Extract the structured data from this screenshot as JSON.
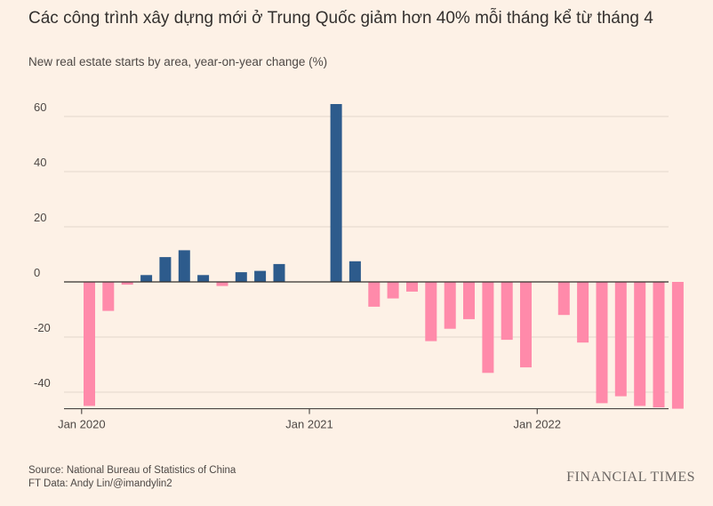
{
  "title": "Các công trình xây dựng mới ở Trung Quốc giảm hơn 40% mỗi tháng kể từ tháng 4",
  "subtitle": "New real estate starts by area, year-on-year change (%)",
  "source": "Source: National Bureau of Statistics of China",
  "credit": "FT Data: Andy Lin/@imandylin2",
  "brand": "FINANCIAL TIMES",
  "colors": {
    "positive": "#2d5b8c",
    "negative": "#ff8aaa",
    "grid": "#e2d7cc",
    "axis": "#33302e"
  },
  "chart_data": {
    "type": "bar",
    "title": "Các công trình xây dựng mới ở Trung Quốc giảm hơn 40% mỗi tháng kể từ tháng 4",
    "subtitle": "New real estate starts by area, year-on-year change (%)",
    "categories": [
      "2020-01",
      "2020-02",
      "2020-03",
      "2020-04",
      "2020-05",
      "2020-06",
      "2020-07",
      "2020-08",
      "2020-09",
      "2020-10",
      "2020-11",
      "2020-12",
      "2021-01",
      "2021-02",
      "2021-03",
      "2021-04",
      "2021-05",
      "2021-06",
      "2021-07",
      "2021-08",
      "2021-09",
      "2021-10",
      "2021-11",
      "2021-12",
      "2022-01",
      "2022-02",
      "2022-03",
      "2022-04",
      "2022-05",
      "2022-06",
      "2022-07",
      "2022-08",
      "2022-09"
    ],
    "values": [
      -45,
      -10.5,
      -1,
      2.5,
      9,
      11.5,
      2.5,
      -1.5,
      3.5,
      4,
      6.5,
      null,
      null,
      64.5,
      7.5,
      -9,
      -6,
      -3.5,
      -21.5,
      -17,
      -13.5,
      -33,
      -21,
      -31,
      null,
      -12,
      -22,
      -44,
      -41.5,
      -45,
      -45.5,
      -46,
      null
    ],
    "x_tick_labels": [
      {
        "label": "Jan 2020",
        "category": "2020-01"
      },
      {
        "label": "Jan 2021",
        "category": "2021-01"
      },
      {
        "label": "Jan 2022",
        "category": "2022-01"
      }
    ],
    "y_ticks": [
      60,
      40,
      20,
      0,
      -20,
      -40
    ],
    "ylim": [
      -46,
      70
    ],
    "grid": true,
    "xlabel": "",
    "ylabel": ""
  }
}
